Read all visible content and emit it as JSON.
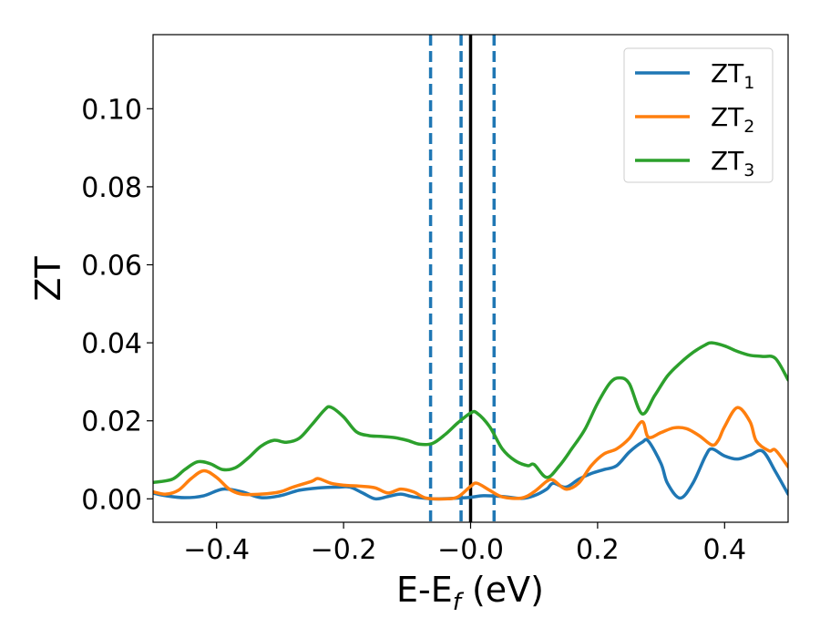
{
  "chart_data": {
    "type": "line",
    "xlabel": {
      "main": "E-E",
      "sub": "f",
      "unit": " (eV)"
    },
    "ylabel": "ZT",
    "xlim": [
      -0.5,
      0.5
    ],
    "ylim": [
      -0.006,
      0.119
    ],
    "x_ticks": [
      -0.4,
      -0.2,
      0.0,
      0.2,
      0.4
    ],
    "x_tick_labels": [
      "−0.4",
      "−0.2",
      "−0.0",
      "0.2",
      "0.4"
    ],
    "y_ticks": [
      0.0,
      0.02,
      0.04,
      0.06,
      0.08,
      0.1
    ],
    "y_tick_labels": [
      "0.00",
      "0.02",
      "0.04",
      "0.06",
      "0.08",
      "0.10"
    ],
    "grid": false,
    "legend_position": "top-right",
    "vlines": [
      {
        "x": -0.063,
        "style": "dashed",
        "color": "#1f77b4"
      },
      {
        "x": -0.015,
        "style": "dashed",
        "color": "#1f77b4"
      },
      {
        "x": 0.0,
        "style": "solid",
        "color": "#000000"
      },
      {
        "x": 0.037,
        "style": "dashed",
        "color": "#1f77b4"
      }
    ],
    "series": [
      {
        "name": "ZT",
        "sub": "1",
        "color": "#1f77b4",
        "points": [
          [
            -0.5,
            0.0015
          ],
          [
            -0.48,
            0.0008
          ],
          [
            -0.45,
            0.0003
          ],
          [
            -0.42,
            0.0008
          ],
          [
            -0.39,
            0.0025
          ],
          [
            -0.36,
            0.0018
          ],
          [
            -0.33,
            0.0003
          ],
          [
            -0.3,
            0.0008
          ],
          [
            -0.27,
            0.0022
          ],
          [
            -0.24,
            0.0028
          ],
          [
            -0.21,
            0.003
          ],
          [
            -0.19,
            0.003
          ],
          [
            -0.17,
            0.0015
          ],
          [
            -0.15,
            0.0
          ],
          [
            -0.13,
            0.0006
          ],
          [
            -0.11,
            0.0012
          ],
          [
            -0.09,
            0.0005
          ],
          [
            -0.06,
            0.0
          ],
          [
            -0.03,
            0.0001
          ],
          [
            0.0,
            0.0004
          ],
          [
            0.02,
            0.0008
          ],
          [
            0.05,
            0.0006
          ],
          [
            0.08,
            0.0001
          ],
          [
            0.1,
            0.0008
          ],
          [
            0.12,
            0.0025
          ],
          [
            0.13,
            0.004
          ],
          [
            0.15,
            0.003
          ],
          [
            0.17,
            0.005
          ],
          [
            0.19,
            0.0065
          ],
          [
            0.21,
            0.0075
          ],
          [
            0.23,
            0.0085
          ],
          [
            0.25,
            0.012
          ],
          [
            0.27,
            0.0145
          ],
          [
            0.28,
            0.0148
          ],
          [
            0.3,
            0.009
          ],
          [
            0.31,
            0.004
          ],
          [
            0.33,
            0.0002
          ],
          [
            0.35,
            0.004
          ],
          [
            0.37,
            0.011
          ],
          [
            0.38,
            0.0128
          ],
          [
            0.4,
            0.011
          ],
          [
            0.42,
            0.0102
          ],
          [
            0.44,
            0.0112
          ],
          [
            0.46,
            0.0122
          ],
          [
            0.48,
            0.007
          ],
          [
            0.5,
            0.0012
          ]
        ]
      },
      {
        "name": "ZT",
        "sub": "2",
        "color": "#ff7f0e",
        "points": [
          [
            -0.5,
            0.0018
          ],
          [
            -0.48,
            0.0012
          ],
          [
            -0.46,
            0.0022
          ],
          [
            -0.44,
            0.0052
          ],
          [
            -0.42,
            0.0072
          ],
          [
            -0.4,
            0.0055
          ],
          [
            -0.38,
            0.0025
          ],
          [
            -0.36,
            0.0012
          ],
          [
            -0.33,
            0.0012
          ],
          [
            -0.3,
            0.0018
          ],
          [
            -0.28,
            0.003
          ],
          [
            -0.25,
            0.0045
          ],
          [
            -0.24,
            0.0052
          ],
          [
            -0.22,
            0.004
          ],
          [
            -0.2,
            0.0035
          ],
          [
            -0.17,
            0.0032
          ],
          [
            -0.15,
            0.0028
          ],
          [
            -0.13,
            0.0015
          ],
          [
            -0.11,
            0.0025
          ],
          [
            -0.09,
            0.0018
          ],
          [
            -0.07,
            0.0002
          ],
          [
            -0.04,
            0.0
          ],
          [
            -0.02,
            0.0005
          ],
          [
            0.0,
            0.0032
          ],
          [
            0.01,
            0.004
          ],
          [
            0.03,
            0.0022
          ],
          [
            0.05,
            0.0005
          ],
          [
            0.08,
            0.0002
          ],
          [
            0.1,
            0.0018
          ],
          [
            0.12,
            0.0045
          ],
          [
            0.13,
            0.0048
          ],
          [
            0.15,
            0.0025
          ],
          [
            0.17,
            0.004
          ],
          [
            0.19,
            0.0085
          ],
          [
            0.21,
            0.0115
          ],
          [
            0.23,
            0.0128
          ],
          [
            0.25,
            0.0155
          ],
          [
            0.27,
            0.0198
          ],
          [
            0.28,
            0.0158
          ],
          [
            0.3,
            0.017
          ],
          [
            0.32,
            0.0182
          ],
          [
            0.34,
            0.018
          ],
          [
            0.36,
            0.0162
          ],
          [
            0.38,
            0.0138
          ],
          [
            0.39,
            0.015
          ],
          [
            0.4,
            0.0185
          ],
          [
            0.42,
            0.0234
          ],
          [
            0.44,
            0.0198
          ],
          [
            0.45,
            0.0148
          ],
          [
            0.47,
            0.0123
          ],
          [
            0.48,
            0.0125
          ],
          [
            0.5,
            0.0082
          ]
        ]
      },
      {
        "name": "ZT",
        "sub": "3",
        "color": "#2ca02c",
        "points": [
          [
            -0.5,
            0.0042
          ],
          [
            -0.47,
            0.005
          ],
          [
            -0.45,
            0.0075
          ],
          [
            -0.43,
            0.0095
          ],
          [
            -0.41,
            0.009
          ],
          [
            -0.39,
            0.0075
          ],
          [
            -0.37,
            0.008
          ],
          [
            -0.35,
            0.0105
          ],
          [
            -0.33,
            0.0135
          ],
          [
            -0.31,
            0.015
          ],
          [
            -0.29,
            0.0145
          ],
          [
            -0.27,
            0.0155
          ],
          [
            -0.25,
            0.019
          ],
          [
            -0.23,
            0.0228
          ],
          [
            -0.22,
            0.0235
          ],
          [
            -0.2,
            0.021
          ],
          [
            -0.18,
            0.0172
          ],
          [
            -0.16,
            0.0162
          ],
          [
            -0.14,
            0.016
          ],
          [
            -0.12,
            0.0157
          ],
          [
            -0.1,
            0.015
          ],
          [
            -0.08,
            0.014
          ],
          [
            -0.06,
            0.0142
          ],
          [
            -0.04,
            0.0165
          ],
          [
            -0.02,
            0.0195
          ],
          [
            0.0,
            0.022
          ],
          [
            0.01,
            0.022
          ],
          [
            0.03,
            0.0185
          ],
          [
            0.05,
            0.0128
          ],
          [
            0.07,
            0.0098
          ],
          [
            0.09,
            0.0085
          ],
          [
            0.1,
            0.0088
          ],
          [
            0.12,
            0.0055
          ],
          [
            0.14,
            0.0085
          ],
          [
            0.16,
            0.013
          ],
          [
            0.18,
            0.0178
          ],
          [
            0.2,
            0.0245
          ],
          [
            0.22,
            0.0298
          ],
          [
            0.235,
            0.031
          ],
          [
            0.25,
            0.0295
          ],
          [
            0.27,
            0.0218
          ],
          [
            0.29,
            0.0265
          ],
          [
            0.31,
            0.0315
          ],
          [
            0.33,
            0.0348
          ],
          [
            0.35,
            0.0375
          ],
          [
            0.37,
            0.0395
          ],
          [
            0.38,
            0.04
          ],
          [
            0.4,
            0.0392
          ],
          [
            0.42,
            0.0378
          ],
          [
            0.44,
            0.0368
          ],
          [
            0.46,
            0.0365
          ],
          [
            0.48,
            0.036
          ],
          [
            0.5,
            0.0305
          ]
        ]
      }
    ]
  }
}
